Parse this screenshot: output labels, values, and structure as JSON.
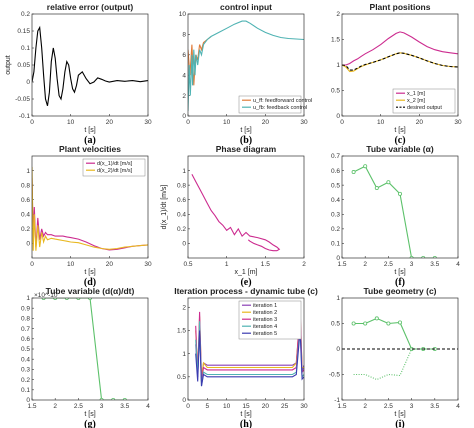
{
  "chart_data": [
    {
      "type": "line",
      "caption": "(a)",
      "title": "relative error (output)",
      "xlabel": "t [s]",
      "ylabel": "output",
      "xlim": [
        0,
        30
      ],
      "ylim": [
        -0.1,
        0.2
      ],
      "xticks": [
        "0",
        "10",
        "20",
        "30"
      ],
      "yticks": [
        "-0.1",
        "-0.05",
        "0",
        "0.05",
        "0.1",
        "0.15",
        "0.2"
      ],
      "series": [
        {
          "color": "#000000",
          "x": [
            0,
            0.5,
            1,
            1.5,
            2,
            2.5,
            3,
            3.5,
            4,
            4.5,
            5,
            5.5,
            6,
            6.5,
            7,
            7.5,
            8,
            8.5,
            9,
            9.5,
            10,
            10.5,
            11,
            11.5,
            12,
            13,
            14,
            15,
            16,
            17,
            18,
            19,
            20,
            22,
            24,
            26,
            28,
            30
          ],
          "y": [
            0,
            0.03,
            0.1,
            0.15,
            0.16,
            0.1,
            0.02,
            -0.05,
            -0.07,
            -0.03,
            0.06,
            0.1,
            0.07,
            0.01,
            -0.04,
            -0.05,
            -0.02,
            0.03,
            0.06,
            0.05,
            0.01,
            -0.02,
            -0.03,
            -0.01,
            0.02,
            0.03,
            0.01,
            -0.005,
            0,
            0.012,
            0.008,
            0.003,
            0,
            0.004,
            0.002,
            0.004,
            0.001,
            0.004
          ]
        }
      ]
    },
    {
      "type": "line",
      "caption": "(b)",
      "title": "control input",
      "xlabel": "t [s]",
      "ylabel": "",
      "xlim": [
        0,
        30
      ],
      "ylim": [
        0,
        10
      ],
      "xticks": [
        "0",
        "10",
        "20",
        "30"
      ],
      "yticks": [
        "0",
        "2",
        "4",
        "6",
        "8",
        "10"
      ],
      "legend_position": "bottom-right",
      "series": [
        {
          "name": "u_ff: feedforward control",
          "color": "#e07b39",
          "x": [
            0,
            0.5,
            1,
            1.5,
            2,
            2.5,
            3,
            3.5,
            4,
            5,
            6
          ],
          "y": [
            6.5,
            4,
            7,
            3,
            6,
            5.5,
            7,
            6.5,
            7.2,
            7.5,
            7.8
          ]
        },
        {
          "name": "u_fb: feedback control",
          "color": "#4fb3b3",
          "x": [
            0,
            0.3,
            0.6,
            1,
            1.2,
            1.5,
            1.8,
            2.1,
            2.5,
            3,
            3.5,
            4,
            5,
            6,
            8,
            10,
            12,
            14,
            15,
            16,
            18,
            20,
            22,
            24,
            26,
            28,
            30
          ],
          "y": [
            0.5,
            5,
            2,
            6,
            3,
            6.5,
            4,
            6,
            5,
            6.5,
            6,
            7,
            7.5,
            7.8,
            8.2,
            8.6,
            9,
            9.3,
            9.3,
            9.1,
            8.6,
            8.2,
            7.9,
            7.7,
            7.6,
            7.55,
            7.5
          ]
        }
      ]
    },
    {
      "type": "line",
      "caption": "(c)",
      "title": "Plant positions",
      "xlabel": "t [s]",
      "ylabel": "",
      "xlim": [
        0,
        30
      ],
      "ylim": [
        0,
        2
      ],
      "xticks": [
        "0",
        "10",
        "20",
        "30"
      ],
      "yticks": [
        "0",
        "0.5",
        "1",
        "1.5",
        "2"
      ],
      "legend_position": "bottom-right",
      "series": [
        {
          "name": "x_1 [m]",
          "color": "#cc2b8f",
          "x": [
            0,
            1,
            2,
            3,
            4,
            5,
            6,
            8,
            10,
            12,
            14,
            15,
            16,
            18,
            20,
            22,
            24,
            26,
            28,
            30
          ],
          "y": [
            1,
            1,
            1.03,
            1.08,
            1.12,
            1.17,
            1.22,
            1.3,
            1.4,
            1.52,
            1.62,
            1.65,
            1.63,
            1.55,
            1.45,
            1.36,
            1.3,
            1.26,
            1.24,
            1.22
          ]
        },
        {
          "name": "x_2 [m]",
          "color": "#e8b820",
          "x": [
            0,
            1,
            2,
            3,
            4,
            5,
            6,
            8,
            10,
            12,
            14,
            15,
            16,
            18,
            20,
            22,
            24,
            26,
            28,
            30
          ],
          "y": [
            1,
            0.96,
            0.87,
            0.88,
            0.93,
            0.97,
            1,
            1.05,
            1.1,
            1.16,
            1.22,
            1.24,
            1.23,
            1.19,
            1.14,
            1.08,
            1.03,
            0.99,
            0.97,
            0.96
          ]
        },
        {
          "name": "desired output",
          "color": "#000000",
          "dashed": true,
          "x": [
            0,
            1,
            2,
            3,
            4,
            5,
            6,
            8,
            10,
            12,
            14,
            15,
            16,
            18,
            20,
            22,
            24,
            26,
            28,
            30
          ],
          "y": [
            1,
            0.99,
            0.9,
            0.9,
            0.94,
            0.98,
            1.01,
            1.05,
            1.1,
            1.16,
            1.22,
            1.24,
            1.23,
            1.19,
            1.14,
            1.08,
            1.03,
            0.99,
            0.97,
            0.96
          ]
        }
      ]
    },
    {
      "type": "line",
      "caption": "(d)",
      "title": "Plant velocities",
      "xlabel": "t [s]",
      "ylabel": "",
      "xlim": [
        0,
        30
      ],
      "ylim": [
        -0.2,
        1.2
      ],
      "xticks": [
        "0",
        "10",
        "20",
        "30"
      ],
      "yticks": [
        "0",
        "0.2",
        "0.4",
        "0.6",
        "0.8",
        "1"
      ],
      "legend_position": "top-right",
      "series": [
        {
          "name": "d(x_1)/dt [m/s]",
          "color": "#cc2b8f",
          "x": [
            0,
            0.3,
            0.6,
            1,
            1.5,
            2,
            2.5,
            3,
            3.5,
            4,
            5,
            6,
            7,
            8,
            9,
            10,
            12,
            14,
            16,
            18,
            20,
            22,
            24,
            26,
            28,
            30
          ],
          "y": [
            0.9,
            0.1,
            0.5,
            -0.05,
            0.35,
            0.05,
            0.2,
            0.1,
            0.15,
            0.12,
            0.12,
            0.1,
            0.1,
            0.1,
            0.09,
            0.08,
            0.06,
            0.02,
            -0.03,
            -0.07,
            -0.09,
            -0.08,
            -0.06,
            -0.04,
            -0.03,
            -0.02
          ]
        },
        {
          "name": "d(x_2)/dt [m/s]",
          "color": "#e8b820",
          "x": [
            0,
            0.3,
            0.6,
            1,
            1.5,
            2,
            2.5,
            3,
            3.5,
            4,
            5,
            6,
            7,
            8,
            9,
            10,
            12,
            14,
            16,
            18,
            20,
            22,
            24,
            26,
            28,
            30
          ],
          "y": [
            1.05,
            -0.1,
            0.4,
            -0.1,
            0.25,
            -0.05,
            0.15,
            0.02,
            0.1,
            0.05,
            0.07,
            0.06,
            0.05,
            0.04,
            0.03,
            0.02,
            0.01,
            -0.02,
            -0.05,
            -0.07,
            -0.08,
            -0.07,
            -0.05,
            -0.04,
            -0.03,
            -0.02
          ]
        }
      ]
    },
    {
      "type": "line",
      "caption": "(e)",
      "title": "Phase diagram",
      "xlabel": "x_1 [m]",
      "ylabel": "d(x_1)/dt [m/s]",
      "xlim": [
        0.5,
        2
      ],
      "ylim": [
        -0.2,
        1.2
      ],
      "xticks": [
        "0.5",
        "1",
        "1.5",
        "2"
      ],
      "yticks": [
        "0",
        "0.2",
        "0.4",
        "0.6",
        "0.8",
        "1"
      ],
      "series": [
        {
          "color": "#cc2b8f",
          "x": [
            0.55,
            0.6,
            0.65,
            0.7,
            0.75,
            0.8,
            0.85,
            0.9,
            0.95,
            1,
            1.05,
            1.1,
            1.15,
            1.2,
            1.25,
            1.3,
            1.4,
            1.5,
            1.55,
            1.6,
            1.65,
            1.68,
            1.65,
            1.6,
            1.55,
            1.5,
            1.45,
            1.4,
            1.35,
            1.3,
            1.28
          ],
          "y": [
            0.95,
            0.85,
            0.75,
            0.65,
            0.55,
            0.45,
            0.38,
            0.3,
            0.25,
            0.18,
            0.22,
            0.12,
            0.2,
            0.1,
            0.15,
            0.1,
            0.08,
            0.05,
            0.02,
            -0.02,
            -0.05,
            -0.08,
            -0.1,
            -0.1,
            -0.09,
            -0.07,
            -0.04,
            -0.02,
            0,
            0.03,
            0.05
          ]
        }
      ]
    },
    {
      "type": "line",
      "caption": "(f)",
      "title": "Tube variable (α)",
      "xlabel": "t [s]",
      "ylabel": "",
      "xlim": [
        1.5,
        4
      ],
      "ylim": [
        0,
        0.7
      ],
      "xticks": [
        "1.5",
        "2",
        "2.5",
        "3",
        "3.5",
        "4"
      ],
      "yticks": [
        "0",
        "0.1",
        "0.2",
        "0.3",
        "0.4",
        "0.5",
        "0.6",
        "0.7"
      ],
      "series": [
        {
          "color": "#5cc16a",
          "markers": true,
          "x": [
            1.75,
            2,
            2.25,
            2.5,
            2.75,
            3,
            3.25,
            3.5
          ],
          "y": [
            0.59,
            0.63,
            0.48,
            0.52,
            0.44,
            0,
            0,
            0
          ]
        }
      ]
    },
    {
      "type": "line",
      "caption": "(g)",
      "title": "Tube variable (d(α)/dt)",
      "exponent_label": "×10^-10",
      "xlabel": "t [s]",
      "ylabel": "",
      "xlim": [
        1.5,
        4
      ],
      "ylim": [
        0,
        1
      ],
      "xticks": [
        "1.5",
        "2",
        "2.5",
        "3",
        "3.5",
        "4"
      ],
      "yticks": [
        "0",
        "0.1",
        "0.2",
        "0.3",
        "0.4",
        "0.5",
        "0.6",
        "0.7",
        "0.8",
        "0.9",
        "1"
      ],
      "series": [
        {
          "color": "#5cc16a",
          "markers": true,
          "x": [
            1.75,
            2,
            2.25,
            2.5,
            2.75,
            3,
            3.25,
            3.5
          ],
          "y": [
            1,
            1,
            1,
            1,
            1,
            0,
            0,
            0
          ]
        }
      ]
    },
    {
      "type": "line",
      "caption": "(h)",
      "title": "Iteration process - dynamic tube (c)",
      "xlabel": "t [s]",
      "ylabel": "",
      "xlim": [
        0,
        30
      ],
      "ylim": [
        0,
        2.2
      ],
      "xticks": [
        "0",
        "5",
        "10",
        "15",
        "20",
        "25",
        "30"
      ],
      "yticks": [
        "0",
        "0.5",
        "1",
        "1.5",
        "2"
      ],
      "legend_position": "top-right",
      "series": [
        {
          "name": "iteration 1",
          "color": "#8a3fb5",
          "x": [
            2,
            2.5,
            3,
            3.5,
            4,
            5,
            10,
            15,
            20,
            25,
            27,
            28,
            29,
            29.5,
            30
          ],
          "y": [
            1.2,
            0.5,
            1.6,
            0.4,
            0.8,
            0.75,
            0.75,
            0.75,
            0.75,
            0.75,
            0.75,
            0.8,
            1.8,
            0.6,
            0.75
          ]
        },
        {
          "name": "iteration 2",
          "color": "#e8b820",
          "x": [
            2,
            2.5,
            3,
            3.5,
            4,
            5,
            10,
            15,
            20,
            25,
            27,
            28,
            29,
            29.5,
            30
          ],
          "y": [
            1.5,
            0.6,
            1.8,
            0.5,
            0.8,
            0.7,
            0.7,
            0.7,
            0.7,
            0.7,
            0.7,
            0.8,
            1.9,
            0.7,
            0.7
          ]
        },
        {
          "name": "iteration 3",
          "color": "#cc2b8f",
          "x": [
            2,
            2.5,
            3,
            3.5,
            4,
            5,
            10,
            15,
            20,
            25,
            27,
            28,
            29,
            29.5,
            30
          ],
          "y": [
            1.6,
            0.5,
            1.9,
            0.4,
            0.7,
            0.65,
            0.65,
            0.65,
            0.65,
            0.65,
            0.65,
            0.7,
            2,
            0.6,
            0.65
          ]
        },
        {
          "name": "iteration 4",
          "color": "#4fb3b3",
          "x": [
            2,
            2.5,
            3,
            3.5,
            4,
            5,
            10,
            15,
            20,
            25,
            27,
            28,
            29,
            29.5,
            30
          ],
          "y": [
            1.3,
            0.5,
            1.7,
            0.3,
            0.6,
            0.55,
            0.55,
            0.55,
            0.55,
            0.55,
            0.55,
            0.6,
            1.6,
            0.5,
            0.55
          ]
        },
        {
          "name": "iteration 5",
          "color": "#3b3bb0",
          "x": [
            2,
            2.5,
            3,
            3.5,
            4,
            5,
            10,
            15,
            20,
            25,
            27,
            28,
            29,
            29.5,
            30
          ],
          "y": [
            1,
            0.4,
            1.5,
            0.3,
            0.55,
            0.5,
            0.5,
            0.5,
            0.5,
            0.5,
            0.5,
            0.55,
            1.5,
            0.45,
            0.5
          ]
        }
      ]
    },
    {
      "type": "line",
      "caption": "(i)",
      "title": "Tube geometry (c)",
      "xlabel": "t [s]",
      "ylabel": "",
      "xlim": [
        1.5,
        4
      ],
      "ylim": [
        -1,
        1
      ],
      "xticks": [
        "1.5",
        "2",
        "2.5",
        "3",
        "3.5",
        "4"
      ],
      "yticks": [
        "-1",
        "-0.5",
        "0",
        "0.5",
        "1"
      ],
      "series": [
        {
          "color": "#5cc16a",
          "markers": true,
          "x": [
            1.75,
            2,
            2.25,
            2.5,
            2.75,
            3,
            3.25,
            3.5
          ],
          "y": [
            0.5,
            0.5,
            0.6,
            0.5,
            0.52,
            0,
            0,
            0
          ]
        },
        {
          "color": "#5cc16a",
          "dotted": true,
          "x": [
            1.75,
            2,
            2.25,
            2.5,
            2.75,
            3,
            3.25,
            3.5
          ],
          "y": [
            -0.5,
            -0.5,
            -0.6,
            -0.5,
            -0.52,
            0,
            0,
            0
          ]
        },
        {
          "color": "#000000",
          "dashed": true,
          "x": [
            1.5,
            4
          ],
          "y": [
            0,
            0
          ]
        }
      ]
    }
  ]
}
